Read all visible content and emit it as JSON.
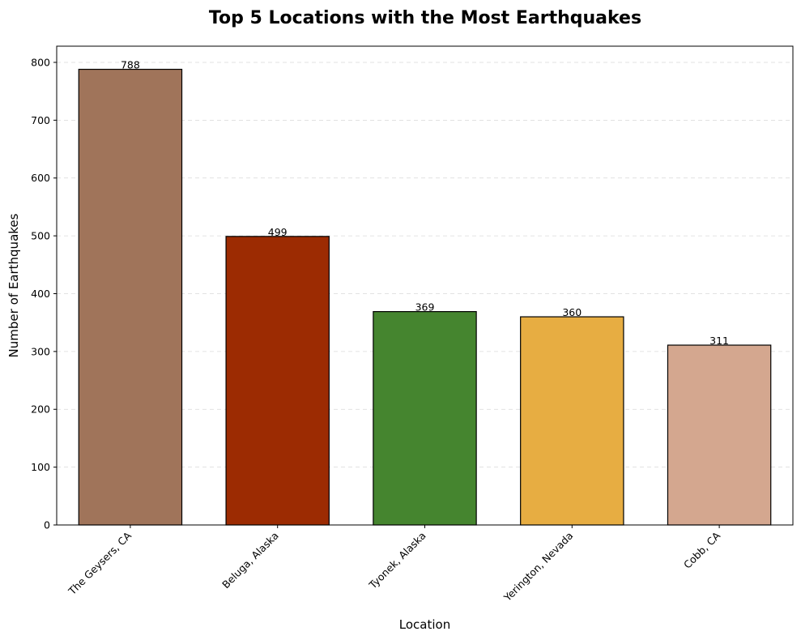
{
  "chart_data": {
    "type": "bar",
    "title": "Top 5 Locations with the Most Earthquakes",
    "xlabel": "Location",
    "ylabel": "Number of Earthquakes",
    "categories": [
      "The Geysers, CA",
      "Beluga, Alaska",
      "Tyonek, Alaska",
      "Yerington, Nevada",
      "Cobb, CA"
    ],
    "values": [
      788,
      499,
      369,
      360,
      311
    ],
    "colors": [
      "#a0745a",
      "#9c2b02",
      "#45852f",
      "#e7ad42",
      "#d4a78f"
    ],
    "ylim": [
      0,
      828
    ],
    "yticks": [
      0,
      100,
      200,
      300,
      400,
      500,
      600,
      700,
      800
    ],
    "grid": "y-dashed",
    "legend": "none"
  }
}
